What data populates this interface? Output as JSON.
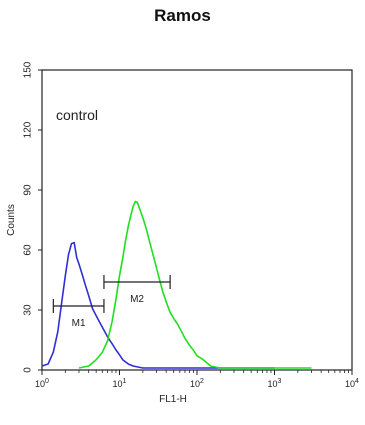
{
  "chart_data": {
    "type": "line",
    "title": "Ramos",
    "xlabel": "FL1-H",
    "ylabel": "Counts",
    "x_scale": "log",
    "xlim": [
      1,
      10000
    ],
    "ylim": [
      0,
      150
    ],
    "x_ticks": [
      {
        "base": "10",
        "exp": "0",
        "value": 1
      },
      {
        "base": "10",
        "exp": "1",
        "value": 10
      },
      {
        "base": "10",
        "exp": "2",
        "value": 100
      },
      {
        "base": "10",
        "exp": "3",
        "value": 1000
      },
      {
        "base": "10",
        "exp": "4",
        "value": 10000
      }
    ],
    "y_ticks": [
      "0",
      "30",
      "60",
      "90",
      "120",
      "150"
    ],
    "annotation": "control",
    "grid": false,
    "series": [
      {
        "color": "#2f2fd6",
        "points": [
          [
            1,
            2
          ],
          [
            1.2,
            3
          ],
          [
            1.4,
            8
          ],
          [
            1.6,
            18
          ],
          [
            1.8,
            33
          ],
          [
            2.0,
            46
          ],
          [
            2.2,
            57
          ],
          [
            2.4,
            63
          ],
          [
            2.6,
            64
          ],
          [
            2.8,
            57
          ],
          [
            3.0,
            54
          ],
          [
            3.3,
            49
          ],
          [
            3.6,
            44
          ],
          [
            4.0,
            38
          ],
          [
            4.5,
            31
          ],
          [
            5.0,
            27
          ],
          [
            5.6,
            23
          ],
          [
            6.3,
            19
          ],
          [
            7.1,
            15
          ],
          [
            8,
            12
          ],
          [
            9,
            9
          ],
          [
            10,
            7
          ],
          [
            11,
            5
          ],
          [
            13,
            3
          ],
          [
            15,
            2
          ],
          [
            20,
            1
          ],
          [
            30,
            1
          ],
          [
            50,
            1
          ],
          [
            100,
            1
          ],
          [
            300,
            1
          ],
          [
            1000,
            1
          ]
        ]
      },
      {
        "color": "#1ee01e",
        "points": [
          [
            3,
            1
          ],
          [
            4,
            2
          ],
          [
            5,
            4
          ],
          [
            6,
            8
          ],
          [
            7,
            14
          ],
          [
            8,
            24
          ],
          [
            9,
            36
          ],
          [
            10,
            48
          ],
          [
            11,
            57
          ],
          [
            12,
            66
          ],
          [
            13,
            73
          ],
          [
            14,
            78
          ],
          [
            15,
            82
          ],
          [
            16,
            84
          ],
          [
            17,
            83
          ],
          [
            18,
            80
          ],
          [
            20,
            75
          ],
          [
            22,
            70
          ],
          [
            25,
            62
          ],
          [
            28,
            55
          ],
          [
            32,
            47
          ],
          [
            36,
            40
          ],
          [
            40,
            35
          ],
          [
            45,
            30
          ],
          [
            50,
            27
          ],
          [
            56,
            24
          ],
          [
            63,
            20
          ],
          [
            70,
            16
          ],
          [
            80,
            12
          ],
          [
            90,
            9
          ],
          [
            100,
            6
          ],
          [
            120,
            4
          ],
          [
            150,
            2
          ],
          [
            200,
            1
          ],
          [
            300,
            1
          ],
          [
            1000,
            1
          ],
          [
            3000,
            1
          ]
        ]
      }
    ],
    "markers": [
      {
        "label": "M1",
        "x_start": 1.4,
        "x_end": 6.3,
        "y": 32
      },
      {
        "label": "M2",
        "x_start": 6.3,
        "x_end": 45,
        "y": 44
      }
    ]
  }
}
